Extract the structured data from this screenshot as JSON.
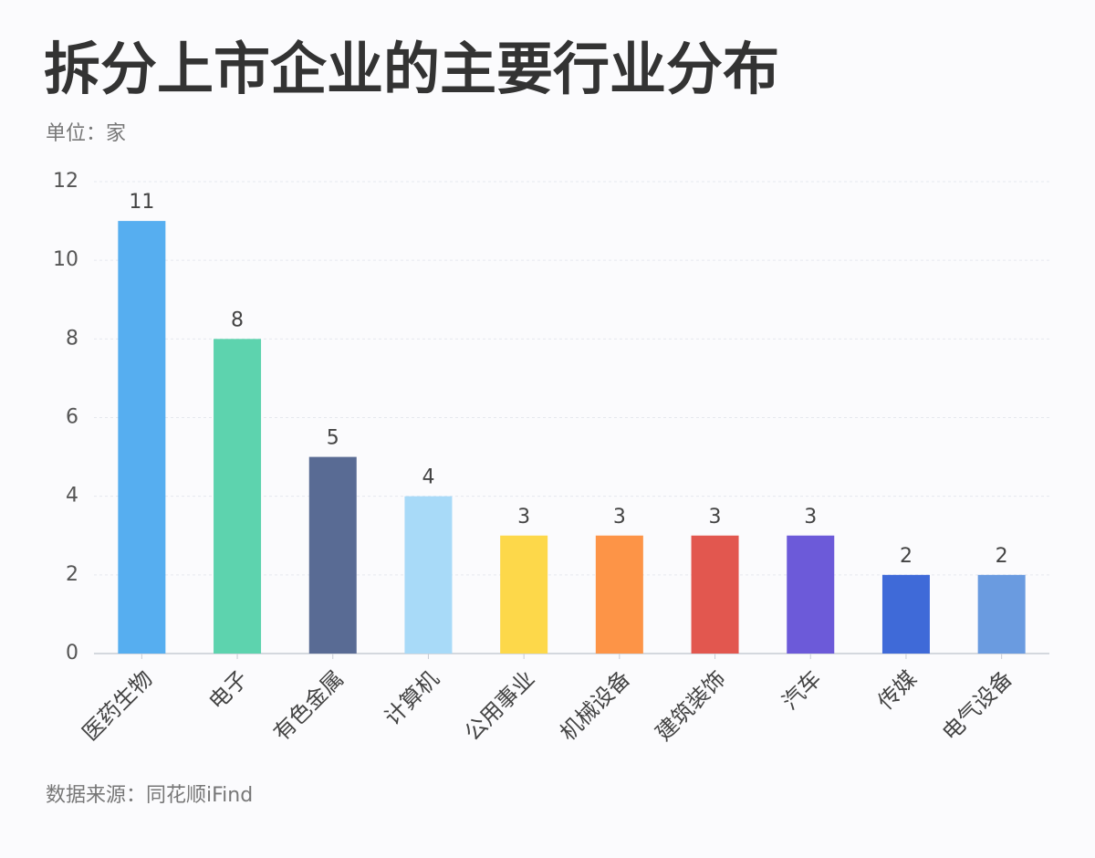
{
  "chart_data": {
    "type": "bar",
    "title": "拆分上市企业的主要行业分布",
    "subtitle": "单位：家",
    "categories": [
      "医药生物",
      "电子",
      "有色金属",
      "计算机",
      "公用事业",
      "机械设备",
      "建筑装饰",
      "汽车",
      "传媒",
      "电气设备"
    ],
    "values": [
      11,
      8,
      5,
      4,
      3,
      3,
      3,
      3,
      2,
      2
    ],
    "colors": [
      "#56aef0",
      "#5dd3ae",
      "#596b94",
      "#a8daf8",
      "#fdd84a",
      "#fd9447",
      "#e2574f",
      "#6c5ad9",
      "#3f6ad8",
      "#6a9be0"
    ],
    "ylim": [
      0,
      12
    ],
    "yticks": [
      0,
      2,
      4,
      6,
      8,
      10,
      12
    ],
    "grid": true,
    "source": "数据来源：同花顺iFind"
  }
}
